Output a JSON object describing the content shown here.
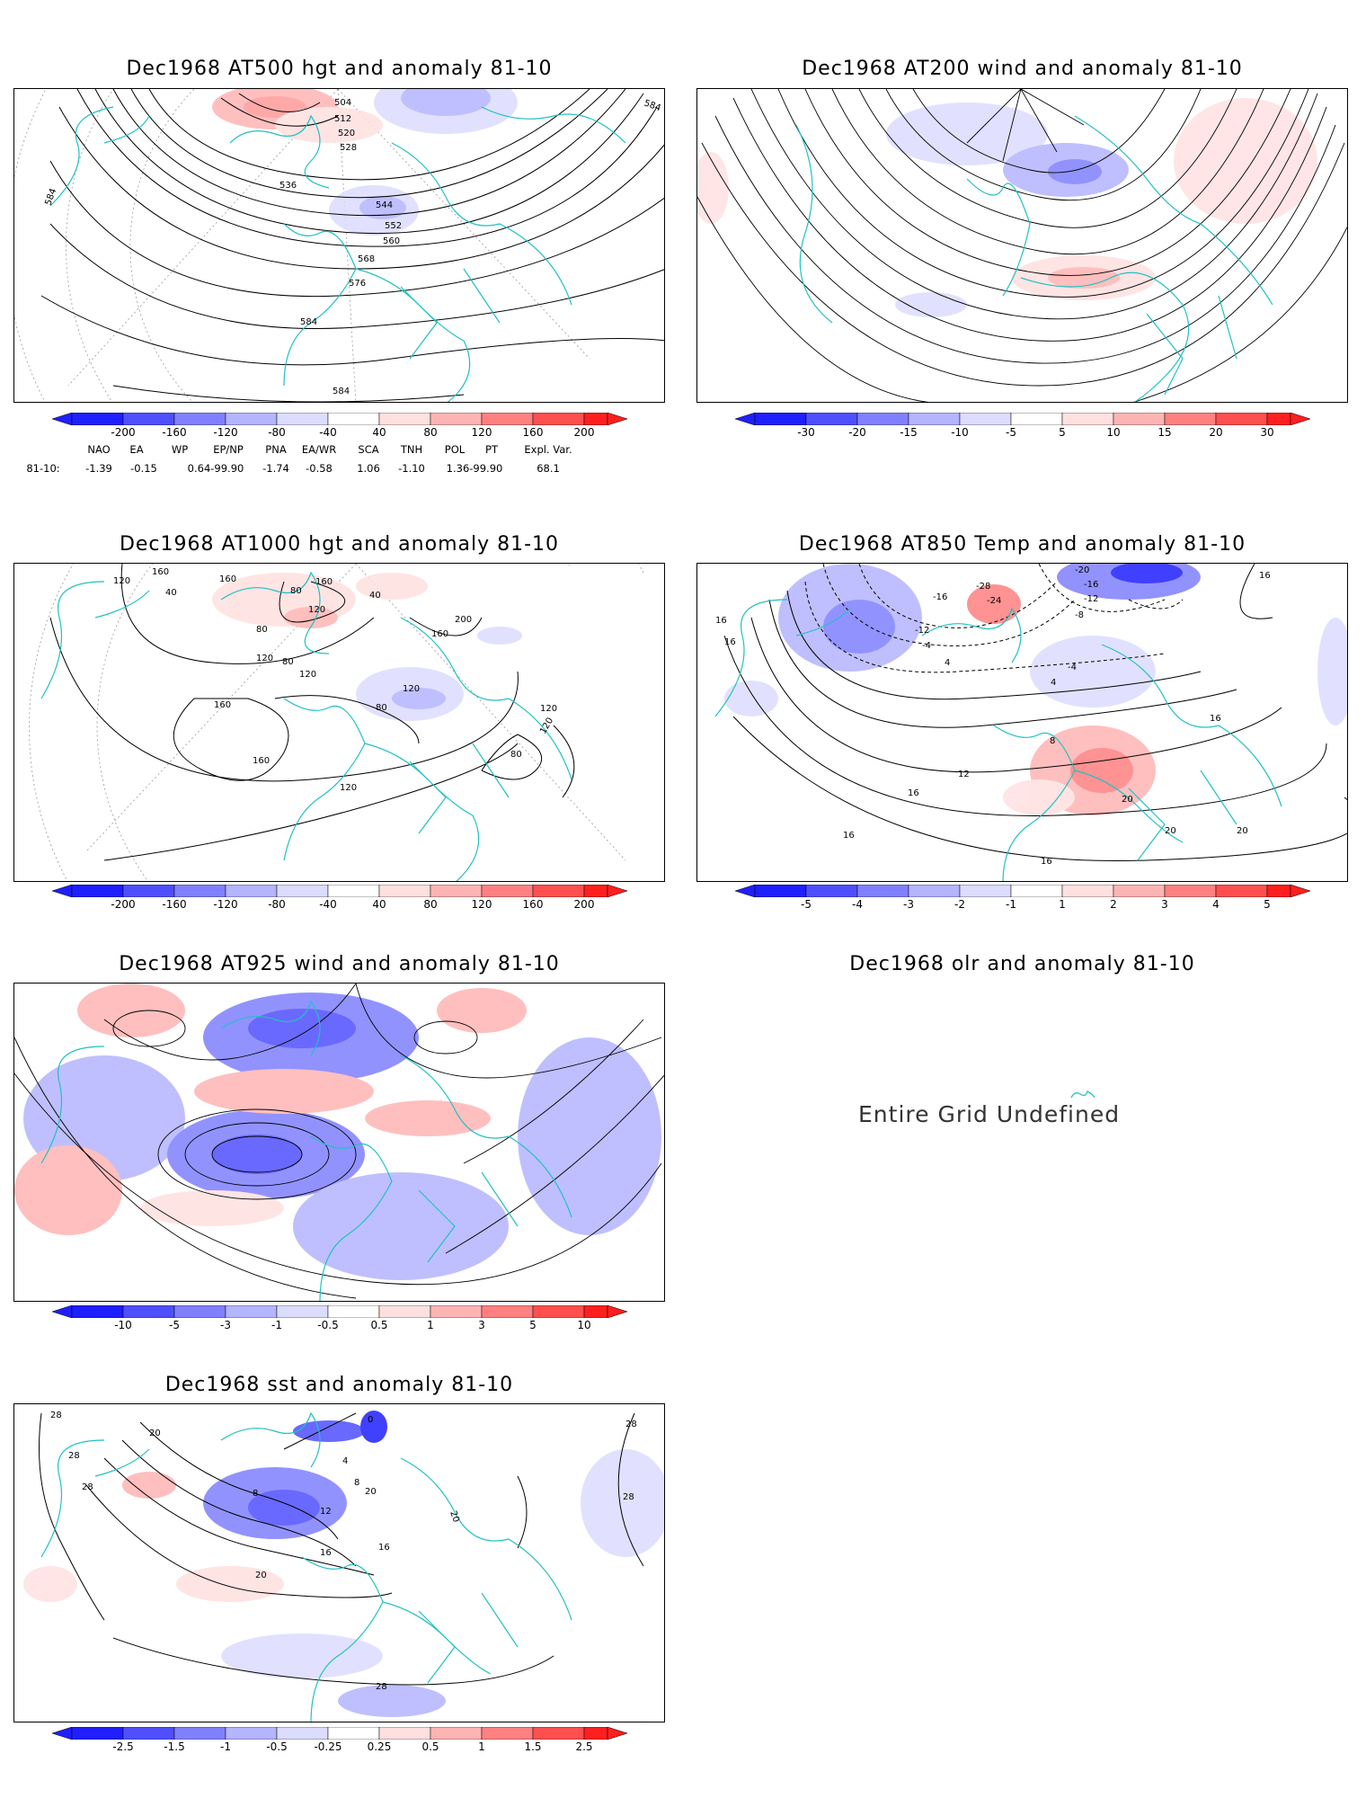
{
  "colors": {
    "coast": "#21c1c1",
    "neg_strong": "#1f1fff",
    "neg_mid": "#6c6cff",
    "neg_light": "#b4b4ff",
    "neg_faint": "#dcdcff",
    "pos_faint": "#ffe0e0",
    "pos_light": "#ffb4b4",
    "pos_mid": "#ff7070",
    "pos_strong": "#ff2020",
    "contour": "#000000"
  },
  "panels": {
    "p500": {
      "title": "Dec1968 AT500 hgt and anomaly 81-10",
      "contour_labels": [
        "504",
        "512",
        "520",
        "528",
        "536",
        "544",
        "552",
        "560",
        "568",
        "576",
        "584",
        "584",
        "584",
        "584"
      ],
      "colorbar": [
        "-200",
        "-160",
        "-120",
        "-80",
        "-40",
        "40",
        "80",
        "120",
        "160",
        "200"
      ],
      "indices": {
        "header": [
          "NAO",
          "EA",
          "WP",
          "EP/NP",
          "PNA",
          "EA/WR",
          "SCA",
          "TNH",
          "POL",
          "PT",
          "Expl. Var."
        ],
        "row_label": "81-10:",
        "values": [
          "-1.39",
          "-0.15",
          "0.64-99.90",
          "-1.74",
          "-0.58",
          "1.06",
          "-1.10",
          "1.36-99.90",
          "68.1"
        ]
      }
    },
    "p200": {
      "title": "Dec1968 AT200 wind and anomaly 81-10",
      "colorbar": [
        "-30",
        "-20",
        "-15",
        "-10",
        "-5",
        "5",
        "10",
        "15",
        "20",
        "30"
      ]
    },
    "p1000": {
      "title": "Dec1968 AT1000 hgt and anomaly 81-10",
      "contour_labels": [
        "160",
        "120",
        "160",
        "80",
        "160",
        "40",
        "120",
        "40",
        "200",
        "160",
        "80",
        "120",
        "120",
        "80",
        "160",
        "120",
        "160",
        "120",
        "120",
        "80",
        "80",
        "120"
      ],
      "colorbar": [
        "-200",
        "-160",
        "-120",
        "-80",
        "-40",
        "40",
        "80",
        "120",
        "160",
        "200"
      ]
    },
    "p850": {
      "title": "Dec1968 AT850 Temp and anomaly 81-10",
      "contour_labels": [
        "-20",
        "-16",
        "-12",
        "16",
        "16",
        "16",
        "-28",
        "-24",
        "-16",
        "-8",
        "-12",
        "-4",
        "4",
        "-4",
        "4",
        "8",
        "16",
        "12",
        "16",
        "20",
        "20",
        "20",
        "16",
        "16"
      ],
      "colorbar": [
        "-5",
        "-4",
        "-3",
        "-2",
        "-1",
        "1",
        "2",
        "3",
        "4",
        "5"
      ]
    },
    "p925": {
      "title": "Dec1968 AT925 wind and anomaly 81-10",
      "colorbar": [
        "-10",
        "-5",
        "-3",
        "-1",
        "-0.5",
        "0.5",
        "1",
        "3",
        "5",
        "10"
      ]
    },
    "olr": {
      "title": "Dec1968 olr and anomaly 81-10",
      "message": "Entire Grid Undefined"
    },
    "sst": {
      "title": "Dec1968 sst and anomaly 81-10",
      "contour_labels": [
        "28",
        "20",
        "28",
        "28",
        "0",
        "4",
        "8",
        "8",
        "12",
        "16",
        "16",
        "20",
        "20",
        "20",
        "28",
        "28",
        "28"
      ],
      "colorbar": [
        "-2.5",
        "-1.5",
        "-1",
        "-0.5",
        "-0.25",
        "0.25",
        "0.5",
        "1",
        "1.5",
        "2.5"
      ]
    }
  }
}
